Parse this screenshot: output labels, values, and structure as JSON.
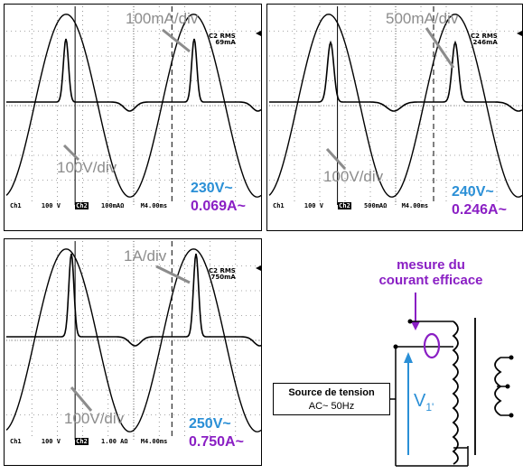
{
  "panels": [
    {
      "current_scale": "100mA/div",
      "voltage_scale": "100V/div",
      "rms_title": "C2 RMS",
      "rms_value": "69mA",
      "status": {
        "ch1": "Ch1",
        "ch1_scale": "100 V",
        "ch2": "Ch2",
        "ch2_scale": "100mAΩ",
        "time": "M4.00ms"
      },
      "voltage_reading": "230V~",
      "current_reading": "0.069A~"
    },
    {
      "current_scale": "500mA/div",
      "voltage_scale": "100V/div",
      "rms_title": "C2 RMS",
      "rms_value": "246mA",
      "status": {
        "ch1": "Ch1",
        "ch1_scale": "100 V",
        "ch2": "Ch2",
        "ch2_scale": "500mAΩ",
        "time": "M4.00ms"
      },
      "voltage_reading": "240V~",
      "current_reading": "0.246A~"
    },
    {
      "current_scale": "1A/div",
      "voltage_scale": "100V/div",
      "rms_title": "C2 RMS",
      "rms_value": "750mA",
      "status": {
        "ch1": "Ch1",
        "ch1_scale": "100 V",
        "ch2": "Ch2",
        "ch2_scale": "1.00 AΩ",
        "time": "M4.00ms"
      },
      "voltage_reading": "250V~",
      "current_reading": "0.750A~"
    }
  ],
  "diagram": {
    "measure_label_line1": "mesure du",
    "measure_label_line2": "courant efficace",
    "source_line1": "Source de tension",
    "source_line2": "AC~ 50Hz",
    "voltage_symbol": "V",
    "voltage_subscript": "1'"
  },
  "colors": {
    "voltage_reading": "#2a8fd6",
    "current_reading": "#8a1fc4",
    "scale_label": "#8c8c8c",
    "trace": "#000000"
  }
}
